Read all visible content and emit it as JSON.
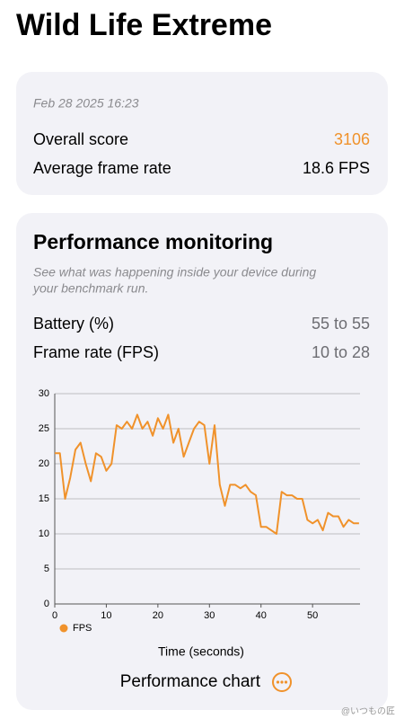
{
  "header": {
    "title": "Wild Life Extreme"
  },
  "summary": {
    "date": "Feb 28 2025 16:23",
    "rows": [
      {
        "label": "Overall score",
        "value": "3106"
      },
      {
        "label": "Average frame rate",
        "value": "18.6 FPS"
      }
    ]
  },
  "monitoring": {
    "title": "Performance monitoring",
    "description": [
      "See what was happening inside your device during",
      "your benchmark run."
    ],
    "rows": [
      {
        "label": "Battery (%)",
        "value": "55 to 55"
      },
      {
        "label": "Frame rate (FPS)",
        "value": "10 to 28"
      }
    ],
    "button": "Performance chart"
  },
  "watermark": "@いつもの匠",
  "chart_data": {
    "type": "line",
    "x": [
      0,
      1,
      2,
      3,
      4,
      5,
      6,
      7,
      8,
      9,
      10,
      11,
      12,
      13,
      14,
      15,
      16,
      17,
      18,
      19,
      20,
      21,
      22,
      23,
      24,
      25,
      26,
      27,
      28,
      29,
      30,
      31,
      32,
      33,
      34,
      35,
      36,
      37,
      38,
      39,
      40,
      41,
      42,
      43,
      44,
      45,
      46,
      47,
      48,
      49,
      50,
      51,
      52,
      53,
      54,
      55,
      56,
      57,
      58,
      59
    ],
    "series": [
      {
        "name": "FPS",
        "color": "#f0922b",
        "values": [
          21.5,
          21.5,
          15,
          18,
          22,
          23,
          20,
          17.5,
          21.5,
          21,
          19,
          20,
          25.5,
          25,
          26,
          25,
          27,
          25,
          26,
          24,
          26.5,
          25,
          27,
          23,
          25,
          21,
          23,
          25,
          26,
          25.5,
          20,
          25.5,
          17,
          14,
          17,
          17,
          16.5,
          17,
          16,
          15.5,
          11,
          11,
          10.5,
          10,
          16,
          15.5,
          15.5,
          15,
          15,
          12,
          11.5,
          12,
          10.5,
          13,
          12.5,
          12.5,
          11,
          12,
          11.5,
          11.5
        ]
      }
    ],
    "x_label": "Time (seconds)",
    "xlim": [
      0,
      59.2
    ],
    "xticks": [
      0,
      10,
      20,
      30,
      40,
      50
    ],
    "ylim": [
      0,
      30
    ],
    "yticks": [
      0,
      5,
      10,
      15,
      20,
      25,
      30
    ],
    "grid": true,
    "legend": "bottom-left"
  }
}
